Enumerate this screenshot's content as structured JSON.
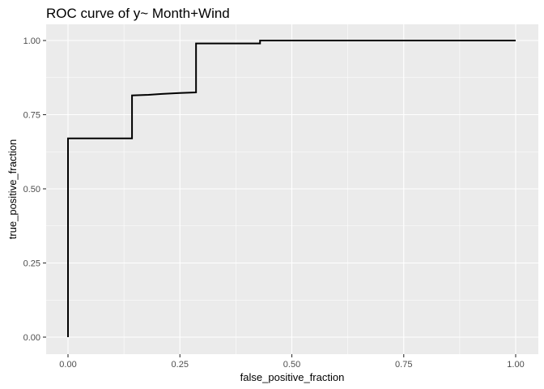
{
  "chart_data": {
    "type": "line",
    "step": true,
    "title": "ROC curve of y~ Month+Wind",
    "xlabel": "false_positive_fraction",
    "ylabel": "true_positive_fraction",
    "xlim": [
      0,
      1
    ],
    "ylim": [
      0,
      1
    ],
    "x_ticks": [
      0,
      0.25,
      0.5,
      0.75,
      1
    ],
    "x_tick_labels": [
      "0.00",
      "0.25",
      "0.50",
      "0.75",
      "1.00"
    ],
    "y_ticks": [
      0,
      0.25,
      0.5,
      0.75,
      1
    ],
    "y_tick_labels": [
      "0.00",
      "0.25",
      "0.50",
      "0.75",
      "1.00"
    ],
    "grid": true,
    "colors": {
      "panel": "#ebebeb",
      "grid": "#ffffff",
      "line": "#000000",
      "tick_text": "#4d4d4d"
    },
    "series": [
      {
        "points": [
          [
            0,
            0
          ],
          [
            0,
            0.67
          ],
          [
            0.143,
            0.67
          ],
          [
            0.143,
            0.815
          ],
          [
            0.18,
            0.817
          ],
          [
            0.21,
            0.82
          ],
          [
            0.25,
            0.823
          ],
          [
            0.286,
            0.825
          ],
          [
            0.286,
            0.99
          ],
          [
            0.429,
            0.99
          ],
          [
            0.429,
            1.0
          ],
          [
            1.0,
            1.0
          ]
        ]
      }
    ]
  }
}
